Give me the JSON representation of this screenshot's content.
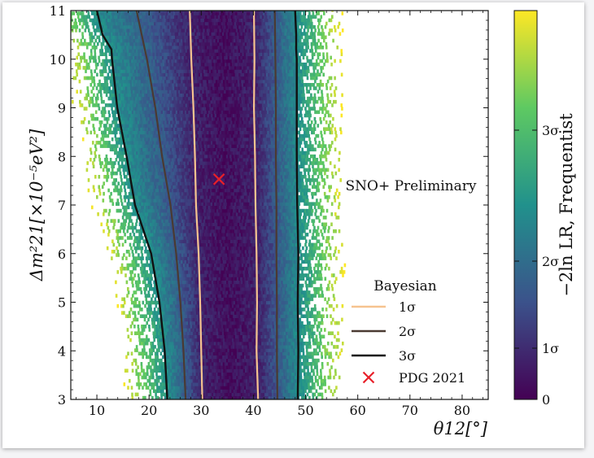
{
  "chart_data": {
    "type": "heatmap",
    "annotation": "SNO+ Preliminary",
    "xlabel": "θ12[°]",
    "ylabel": "Δm²21[×10⁻⁵eV²]",
    "colorbar_label": "−2ln LR, Frequentist",
    "xlim": [
      5,
      85
    ],
    "ylim": [
      3,
      11
    ],
    "xticks": [
      "10",
      "20",
      "30",
      "40",
      "50",
      "60",
      "70",
      "80"
    ],
    "yticks": [
      "3",
      "4",
      "5",
      "6",
      "7",
      "8",
      "9",
      "10",
      "11"
    ],
    "colorbar_ticks": [
      "0",
      "1σ",
      "2σ",
      "3σ"
    ],
    "legend": {
      "title": "Bayesian",
      "entries": [
        {
          "label": "1σ",
          "color": "#f6c38f"
        },
        {
          "label": "2σ",
          "color": "#4a3a32"
        },
        {
          "label": "3σ",
          "color": "#111111"
        },
        {
          "label": "PDG 2021",
          "color": "#e8202a",
          "marker": "x"
        }
      ]
    },
    "pdg_point": {
      "x": 33.4,
      "y": 7.53
    },
    "contours": {
      "sigma1": {
        "y": [
          3,
          4,
          5,
          6,
          7,
          8,
          9,
          10,
          11
        ],
        "left": [
          30.2,
          30.0,
          29.8,
          29.5,
          29.0,
          28.8,
          28.5,
          28.1,
          27.8
        ],
        "right": [
          40.9,
          40.6,
          40.7,
          40.6,
          40.4,
          40.3,
          40.1,
          40.2,
          40.1
        ]
      },
      "sigma2": {
        "y": [
          3,
          4,
          5,
          6,
          7,
          8,
          9,
          10,
          11
        ],
        "left": [
          27.0,
          26.6,
          26.0,
          25.2,
          24.1,
          22.5,
          21.2,
          19.6,
          17.6
        ],
        "right": [
          44.6,
          44.5,
          44.5,
          44.4,
          44.4,
          44.3,
          44.3,
          44.2,
          44.1
        ]
      },
      "sigma3": {
        "y": [
          3,
          4,
          5,
          6,
          7,
          8,
          9,
          10,
          10.2,
          10.5,
          11
        ],
        "left": [
          23.5,
          23.0,
          22.0,
          20.4,
          17.3,
          15.7,
          13.9,
          12.9,
          12.8,
          11.1,
          10.0
        ],
        "right": [
          48.5,
          48.6,
          48.5,
          48.6,
          48.4,
          48.3,
          48.3,
          48.3,
          48.2,
          48.2,
          48.0
        ]
      }
    },
    "colormap": [
      "#440154",
      "#3b528b",
      "#21918c",
      "#5ec962",
      "#fde725"
    ]
  }
}
